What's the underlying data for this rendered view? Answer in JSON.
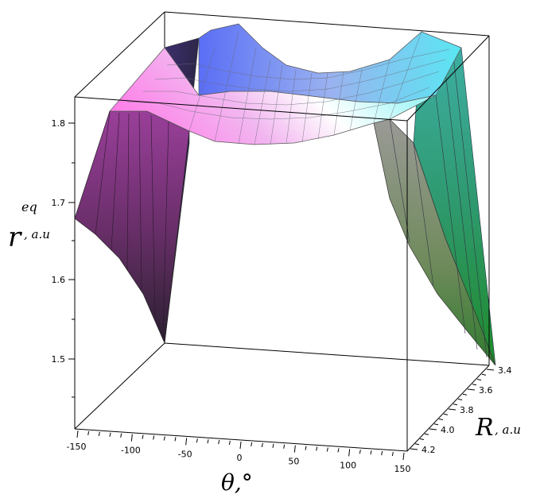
{
  "chart_data": {
    "type": "surface3d",
    "z_label_main": "r",
    "z_label_sup": "eq",
    "z_label_sub": ", a.u",
    "x_label": "θ,°",
    "y_label_main": "R",
    "y_label_sub": ", a.u",
    "x_ticks": [
      "-150",
      "-100",
      "-50",
      "0",
      "50",
      "100",
      "150"
    ],
    "y_ticks": [
      "3.4",
      "3.6",
      "3.8",
      "4.0",
      "4.2"
    ],
    "z_ticks": [
      "1.5",
      "1.6",
      "1.7",
      "1.8"
    ],
    "x_range": [
      -150,
      150
    ],
    "y_range": [
      3.4,
      4.2
    ],
    "z_range": [
      1.5,
      1.8
    ],
    "grid": false
  }
}
